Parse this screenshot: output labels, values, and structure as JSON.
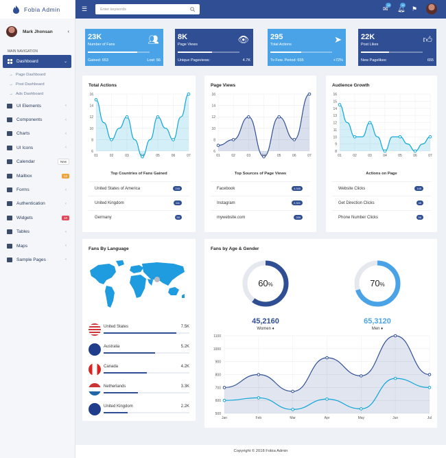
{
  "brand": "Fobia Admin",
  "user": {
    "name": "Mark Jhonsan"
  },
  "nav_header": "MAIN NAVIGATION",
  "dashboard": {
    "label": "Dashboard",
    "sub": [
      "Page Dashboard",
      "Post Dashboard",
      "Ads Dashboard"
    ]
  },
  "nav": [
    {
      "label": "UI Elements",
      "icon": "palette-icon"
    },
    {
      "label": "Components",
      "icon": "box-icon"
    },
    {
      "label": "Charts",
      "icon": "chart-icon"
    },
    {
      "label": "UI Icons",
      "icon": "star-icon"
    },
    {
      "label": "Calendar",
      "icon": "calendar-icon",
      "badge": "New",
      "badge_color": "#ffffff"
    },
    {
      "label": "Mailbox",
      "icon": "mail-icon",
      "badge": "12",
      "badge_color": "#f0a33a"
    },
    {
      "label": "Forms",
      "icon": "form-icon"
    },
    {
      "label": "Authentication",
      "icon": "lock-icon"
    },
    {
      "label": "Widgets",
      "icon": "widget-icon",
      "badge": "10",
      "badge_color": "#e04a5a"
    },
    {
      "label": "Tables",
      "icon": "table-icon"
    },
    {
      "label": "Maps",
      "icon": "map-icon"
    },
    {
      "label": "Sample Pages",
      "icon": "pages-icon"
    }
  ],
  "search": {
    "placeholder": "Enter keywords"
  },
  "topbar": {
    "mail_count": "12",
    "bell_count": "10"
  },
  "stat_cards": [
    {
      "value": "23K",
      "label": "Number of Fans",
      "progress": 0.8,
      "foot_left": "Gained: 653",
      "foot_right": "Lost: 56",
      "color": "#4aa3e6",
      "icon": "users-icon"
    },
    {
      "value": "8K",
      "label": "Page Views",
      "progress": 0.55,
      "foot_left": "Unique Pageviews:",
      "foot_right": "4.7K",
      "color": "#2f4e94",
      "icon": "eye-icon"
    },
    {
      "value": "295",
      "label": "Total Actions",
      "progress": 0.5,
      "foot_left": "To Few. Period: 655",
      "foot_right": "+72%",
      "color": "#4aa3e6",
      "icon": "cursor-icon"
    },
    {
      "value": "22K",
      "label": "Post Likes",
      "progress": 0.45,
      "foot_left": "New Pagelikes:",
      "foot_right": "655",
      "color": "#2f4e94",
      "icon": "thumbs-up-icon"
    }
  ],
  "panels": [
    {
      "title": "Total Actions",
      "list_title": "Top Countries of Fans Gained",
      "items": [
        {
          "label": "United States of America",
          "value": "245"
        },
        {
          "label": "United Kingdom",
          "value": "111"
        },
        {
          "label": "Germany",
          "value": "55"
        }
      ]
    },
    {
      "title": "Page Views",
      "list_title": "Top Sources of Page Views",
      "items": [
        {
          "label": "Facebook",
          "value": "4,345"
        },
        {
          "label": "Instagram",
          "value": "2,321"
        },
        {
          "label": "mywebsite.com",
          "value": "289"
        }
      ]
    },
    {
      "title": "Audience Growth",
      "list_title": "Actions on Page",
      "items": [
        {
          "label": "Website Clicks",
          "value": "145"
        },
        {
          "label": "Get Direction Clicks",
          "value": "45"
        },
        {
          "label": "Phone Number Clicks",
          "value": "56"
        }
      ]
    }
  ],
  "fans_language": {
    "title": "Fans By Language",
    "rows": [
      {
        "name": "United States",
        "value": "7.5K",
        "frac": 0.85
      },
      {
        "name": "Australia",
        "value": "5.2K",
        "frac": 0.6
      },
      {
        "name": "Canada",
        "value": "4.2K",
        "frac": 0.5
      },
      {
        "name": "Netherlands",
        "value": "3.3K",
        "frac": 0.4
      },
      {
        "name": "United Kingdom",
        "value": "2.2K",
        "frac": 0.28
      }
    ]
  },
  "fans_age": {
    "title": "Fans by Age & Gender",
    "women": {
      "percent": "60",
      "pct_symbol": "%",
      "count": "45,2160",
      "label": "Women",
      "frac": 0.6
    },
    "men": {
      "percent": "70",
      "pct_symbol": "%",
      "count": "65,3120",
      "label": "Men",
      "frac": 0.7
    }
  },
  "footer": "Copyright © 2018 Fobia Admin",
  "colors": {
    "navy": "#2f4e94",
    "sky": "#4aa3e6",
    "cyan": "#0ea5d8"
  },
  "chart_data": [
    {
      "type": "area",
      "title": "Total Actions",
      "categories": [
        "01",
        "02",
        "03",
        "04",
        "05",
        "06",
        "07"
      ],
      "x": [
        1,
        1.5,
        2,
        2.5,
        3,
        3.5,
        4,
        4.5,
        5,
        5.5,
        6,
        6.5,
        7
      ],
      "values": [
        15,
        11,
        8,
        10,
        12,
        8,
        5,
        8,
        12,
        10,
        8,
        12,
        16
      ],
      "ylim": [
        6,
        16
      ],
      "ytick_labels": [
        "6",
        "8",
        "10",
        "12",
        "14",
        "16"
      ]
    },
    {
      "type": "area",
      "title": "Page Views",
      "categories": [
        "01",
        "02",
        "03",
        "04",
        "05",
        "06",
        "07"
      ],
      "values": [
        7,
        8,
        12,
        5,
        12,
        8,
        16
      ],
      "ylim": [
        6,
        16
      ],
      "ytick_labels": [
        "6",
        "8",
        "10",
        "12",
        "14",
        "16"
      ]
    },
    {
      "type": "area",
      "title": "Audience Growth",
      "categories": [
        "01",
        "02",
        "03",
        "04",
        "05",
        "06",
        "07"
      ],
      "x": [
        1,
        1.5,
        2,
        2.5,
        3,
        3.5,
        4,
        4.5,
        5,
        5.5,
        6,
        6.5,
        7
      ],
      "values": [
        14.5,
        12,
        10,
        10,
        12,
        10,
        8,
        10,
        10,
        9,
        8,
        9,
        10
      ],
      "ylim": [
        8,
        16
      ],
      "ytick_labels": [
        "8",
        "9",
        "10",
        "11",
        "12",
        "13",
        "14",
        "15",
        "16"
      ]
    },
    {
      "type": "area",
      "title": "Fans by Age & Gender",
      "categories": [
        "Jan",
        "Feb",
        "Mar",
        "Apr",
        "May",
        "Jun",
        "Jul"
      ],
      "series": [
        {
          "values": [
            700,
            800,
            670,
            930,
            790,
            1100,
            800
          ]
        },
        {
          "values": [
            600,
            620,
            530,
            610,
            535,
            770,
            700
          ]
        }
      ],
      "ylim": [
        500,
        1100
      ],
      "ytick_labels": [
        "500",
        "600",
        "700",
        "800",
        "900",
        "1000",
        "1100"
      ]
    }
  ]
}
